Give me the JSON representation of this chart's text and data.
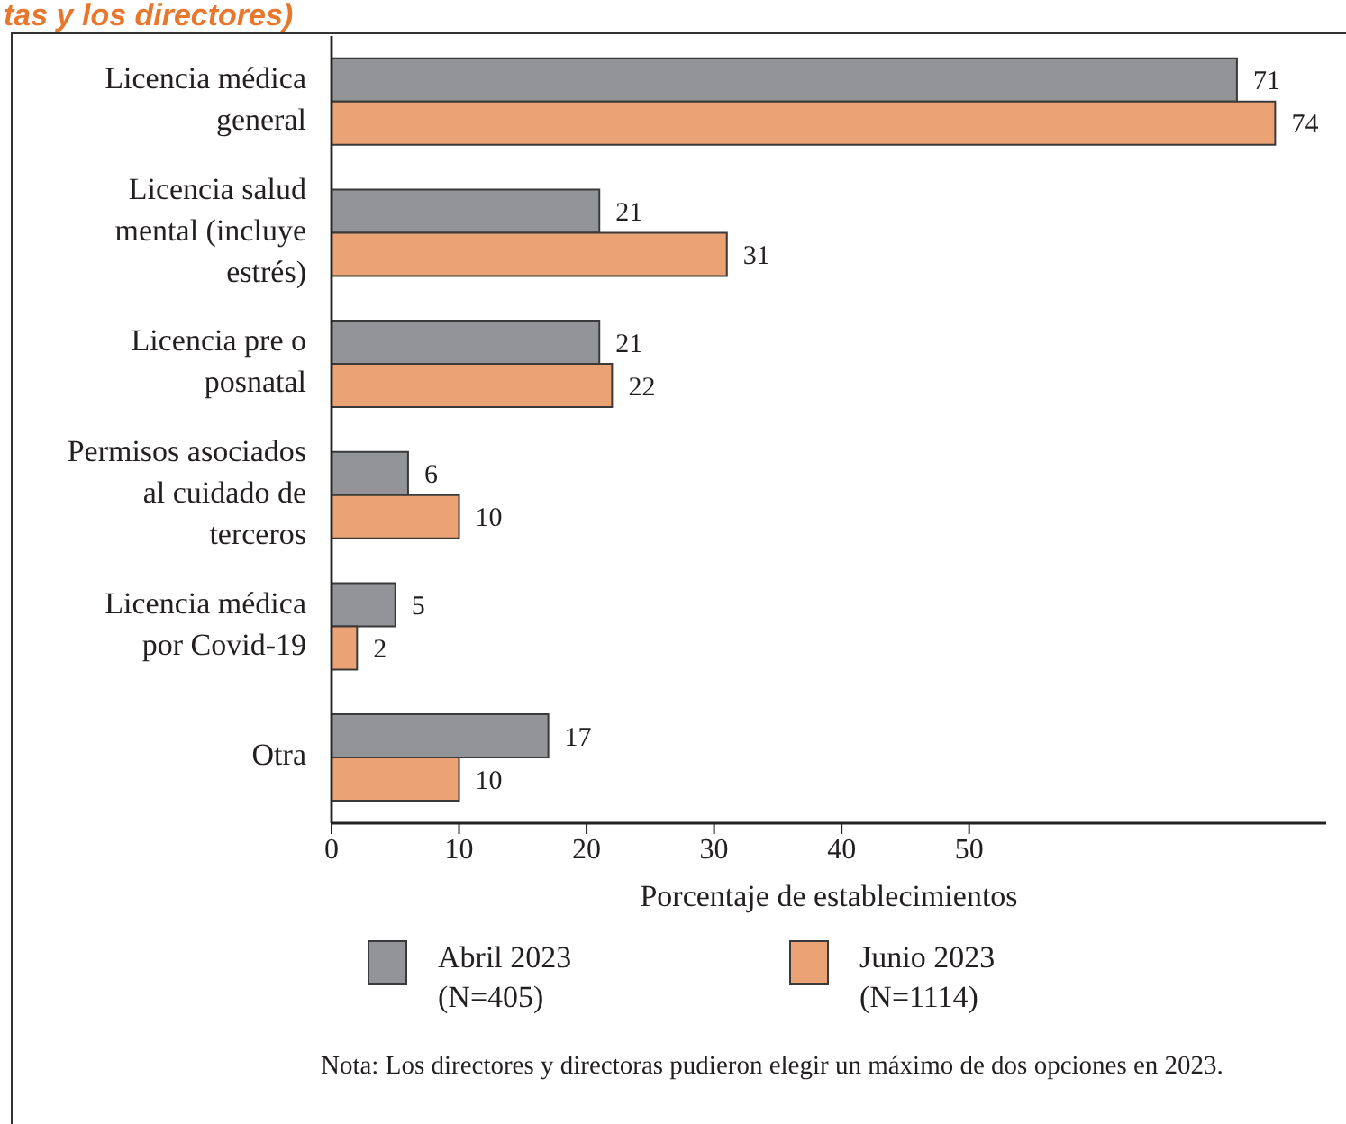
{
  "chart_data": {
    "type": "bar",
    "orientation": "horizontal",
    "title": "tas y los directores)",
    "xlabel": "Porcentaje de establecimientos",
    "categories": [
      "Licencia médica general",
      "Licencia salud mental (incluye estrés)",
      "Licencia pre o posnatal",
      "Permisos asociados al cuidado de terceros",
      "Licencia médica por Covid-19",
      "Otra"
    ],
    "series": [
      {
        "name": "Abril 2023 (N=405)",
        "color": "#929497",
        "values": [
          71,
          21,
          21,
          6,
          5,
          17
        ]
      },
      {
        "name": "Junio 2023 (N=1114)",
        "color": "#eba274",
        "values": [
          74,
          31,
          22,
          10,
          2,
          10
        ]
      }
    ],
    "xlim": [
      0,
      78
    ],
    "xticks": [
      0,
      10,
      20,
      30,
      40,
      50
    ],
    "data_labels": true,
    "legend": "bottom",
    "annotations": [
      "Nota: Los directores y directoras pudieron elegir un máximo de dos opciones en 2023."
    ]
  }
}
